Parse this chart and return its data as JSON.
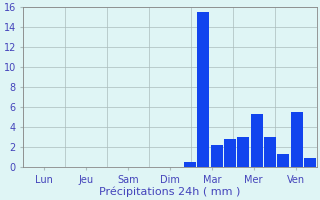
{
  "bar_values": [
    0,
    0,
    0,
    0,
    0,
    0,
    0,
    0,
    0,
    0,
    0,
    0,
    0.5,
    15.5,
    2.2,
    2.8,
    3.0,
    5.3,
    3.0,
    1.3,
    5.5,
    0.9
  ],
  "bar_color": "#1144ee",
  "background_color": "#dff5f5",
  "grid_color": "#aabcbc",
  "tick_label_color": "#4444bb",
  "xlabel": "Précipitations 24h ( mm )",
  "xlabel_fontsize": 8,
  "tick_fontsize": 7,
  "ylim": [
    0,
    16
  ],
  "yticks": [
    0,
    2,
    4,
    6,
    8,
    10,
    12,
    14,
    16
  ],
  "day_labels": [
    "Lun",
    "Jeu",
    "Sam",
    "Dim",
    "Mar",
    "Mer",
    "Ven"
  ],
  "num_bars": 22,
  "figwidth": 3.2,
  "figheight": 2.0,
  "dpi": 100
}
